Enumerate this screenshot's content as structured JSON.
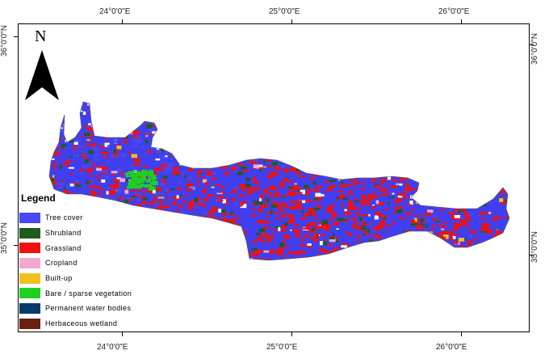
{
  "map": {
    "north_label": "N",
    "legend_title": "Legend",
    "top_axis": [
      "24°0'0\"E",
      "25°0'0\"E",
      "26°0'0\"E"
    ],
    "bottom_axis": [
      "24°0'0\"E",
      "25°0'0\"E",
      "26°0'0\"E"
    ],
    "left_axis": [
      "36°0'0\"N",
      "35°0'0\"N"
    ],
    "right_axis": [
      "36°0'0\"N",
      "35°0'0\"N"
    ],
    "legend": [
      {
        "label": "Tree cover",
        "color": "#4848f4"
      },
      {
        "label": "Shrubland",
        "color": "#1f5a1f"
      },
      {
        "label": "Grassland",
        "color": "#f01010"
      },
      {
        "label": "Cropland",
        "color": "#f0a8d0"
      },
      {
        "label": "Built-up",
        "color": "#f0c020"
      },
      {
        "label": "Bare / sparse vegetation",
        "color": "#20d020"
      },
      {
        "label": "Permanent water bodies",
        "color": "#0a3a6a"
      },
      {
        "label": "Herbaceous wetland",
        "color": "#6a2010"
      }
    ]
  }
}
